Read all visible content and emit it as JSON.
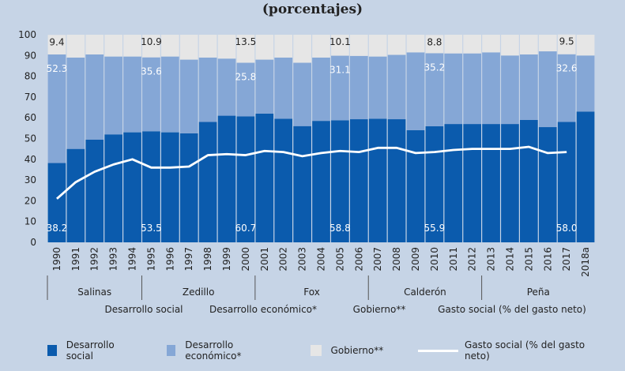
{
  "title": "(porcentajes)",
  "colors": {
    "social": "#0b5bad",
    "economico": "#85a7d6",
    "gobierno": "#e6e6e6",
    "line": "#ffffff",
    "background": "#c6d4e6"
  },
  "legend": {
    "social": "Desarrollo social",
    "economico": "Desarrollo económico*",
    "gobierno": "Gobierno**",
    "line": "Gasto social (% del gasto neto)"
  },
  "overlay_labels": [
    "Desarrollo social",
    "Desarrollo económico*",
    "Gobierno**",
    "Gasto social (% del gasto neto)"
  ],
  "chart_data": {
    "type": "bar",
    "stacked": true,
    "title": "(porcentajes)",
    "ylim": [
      0,
      100
    ],
    "yticks": [
      0,
      10,
      20,
      30,
      40,
      50,
      60,
      70,
      80,
      90,
      100
    ],
    "categories": [
      "1990",
      "1991",
      "1992",
      "1993",
      "1994",
      "1995",
      "1996",
      "1997",
      "1998",
      "1999",
      "2000",
      "2001",
      "2002",
      "2003",
      "2004",
      "2005",
      "2006",
      "2007",
      "2008",
      "2009",
      "2010",
      "2011",
      "2012",
      "2013",
      "2014",
      "2015",
      "2016",
      "2017",
      "2018a"
    ],
    "series": [
      {
        "name": "Desarrollo social",
        "values": [
          38.2,
          45,
          49.5,
          52,
          53,
          53.5,
          53,
          52.5,
          58,
          61,
          60.7,
          62,
          59.5,
          56,
          58.5,
          58.8,
          59.3,
          59.5,
          59.3,
          54,
          55.9,
          57,
          57,
          57,
          57,
          59,
          55.5,
          58,
          63
        ]
      },
      {
        "name": "Desarrollo económico*",
        "values": [
          52.3,
          44,
          41,
          37.5,
          36.5,
          35.6,
          36.5,
          35.5,
          31,
          27.5,
          25.8,
          26,
          29.5,
          30.5,
          30.5,
          31.1,
          30.5,
          30,
          31,
          37.5,
          35.2,
          34,
          34,
          34.5,
          33,
          31.5,
          36.5,
          32.6,
          27
        ]
      },
      {
        "name": "Gobierno**",
        "values": [
          9.4,
          11,
          9.5,
          10.5,
          10.5,
          10.9,
          10.5,
          12,
          11,
          11.5,
          13.5,
          12,
          11,
          13.5,
          11,
          10.1,
          10.2,
          10.5,
          9.7,
          8.5,
          8.8,
          9,
          9,
          8.5,
          10,
          9.5,
          8,
          9.5,
          10
        ]
      }
    ],
    "line": {
      "name": "Gasto social (% del gasto neto)",
      "values": [
        21,
        29,
        34,
        37.5,
        40,
        36,
        36,
        36.5,
        42,
        42.5,
        42,
        44,
        43.5,
        41.5,
        43,
        44,
        43.5,
        45.5,
        45.5,
        43,
        43.5,
        44.5,
        45,
        45,
        45,
        46,
        43,
        43.5,
        null
      ]
    },
    "data_labels": [
      {
        "index": 0,
        "series": 0,
        "text": "38.2"
      },
      {
        "index": 0,
        "series": 1,
        "text": "52.3"
      },
      {
        "index": 0,
        "series": 2,
        "text": "9.4"
      },
      {
        "index": 5,
        "series": 0,
        "text": "53.5"
      },
      {
        "index": 5,
        "series": 1,
        "text": "35.6"
      },
      {
        "index": 5,
        "series": 2,
        "text": "10.9"
      },
      {
        "index": 10,
        "series": 0,
        "text": "60.7"
      },
      {
        "index": 10,
        "series": 1,
        "text": "25.8"
      },
      {
        "index": 10,
        "series": 2,
        "text": "13.5"
      },
      {
        "index": 15,
        "series": 0,
        "text": "58.8"
      },
      {
        "index": 15,
        "series": 1,
        "text": "31.1"
      },
      {
        "index": 15,
        "series": 2,
        "text": "10.1"
      },
      {
        "index": 20,
        "series": 0,
        "text": "55.9"
      },
      {
        "index": 20,
        "series": 1,
        "text": "35.2"
      },
      {
        "index": 20,
        "series": 2,
        "text": "8.8"
      },
      {
        "index": 27,
        "series": 0,
        "text": "58.0"
      },
      {
        "index": 27,
        "series": 1,
        "text": "32.6"
      },
      {
        "index": 27,
        "series": 2,
        "text": "9.5"
      }
    ],
    "groups": [
      {
        "label": "Salinas",
        "start": 0,
        "end": 4
      },
      {
        "label": "Zedillo",
        "start": 5,
        "end": 10
      },
      {
        "label": "Fox",
        "start": 11,
        "end": 16
      },
      {
        "label": "Calderón",
        "start": 17,
        "end": 22
      },
      {
        "label": "Peña",
        "start": 23,
        "end": 28
      }
    ]
  }
}
